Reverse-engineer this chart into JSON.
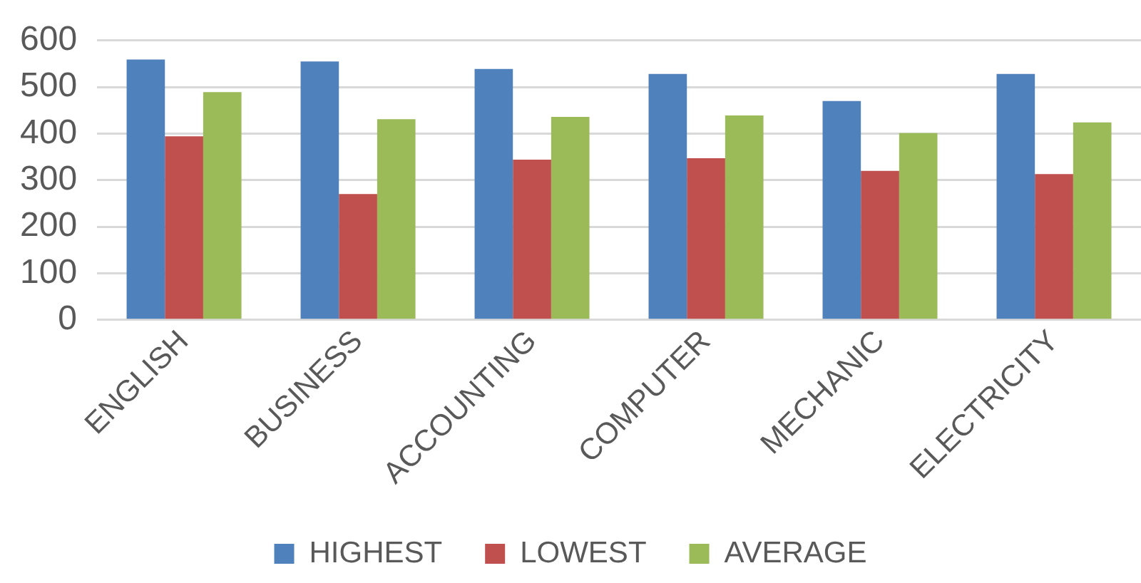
{
  "chart_data": {
    "type": "bar",
    "categories": [
      "ENGLISH",
      "BUSINESS",
      "ACCOUNTING",
      "COMPUTER",
      "MECHANIC",
      "ELECTRICITY"
    ],
    "series": [
      {
        "name": "HIGHEST",
        "color": "#4f81bd",
        "values": [
          559,
          555,
          539,
          528,
          470,
          528
        ]
      },
      {
        "name": "LOWEST",
        "color": "#c0504d",
        "values": [
          394,
          270,
          344,
          347,
          320,
          313
        ]
      },
      {
        "name": "AVERAGE",
        "color": "#9bbb59",
        "values": [
          489,
          431,
          436,
          439,
          401,
          424
        ]
      }
    ],
    "ylim": [
      0,
      600
    ],
    "yticks": [
      0,
      100,
      200,
      300,
      400,
      500,
      600
    ],
    "grid": "y",
    "legend": "bottom"
  }
}
